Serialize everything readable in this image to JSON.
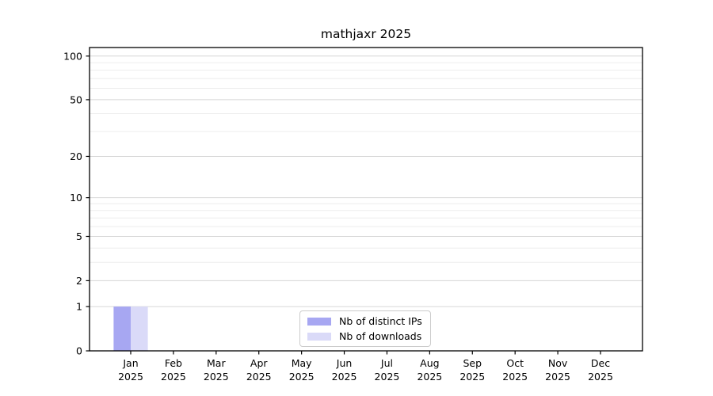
{
  "chart_data": {
    "type": "bar",
    "title": "mathjaxr 2025",
    "scale": "log1p",
    "categories": [
      "Jan",
      "Feb",
      "Mar",
      "Apr",
      "May",
      "Jun",
      "Jul",
      "Aug",
      "Sep",
      "Oct",
      "Nov",
      "Dec"
    ],
    "x_tick_second_line": "2025",
    "series": [
      {
        "name": "Nb of distinct IPs",
        "color": "#a7a7f2",
        "values": [
          1,
          0,
          0,
          0,
          0,
          0,
          0,
          0,
          0,
          0,
          0,
          0
        ]
      },
      {
        "name": "Nb of downloads",
        "color": "#dadaf8",
        "values": [
          1,
          0,
          0,
          0,
          0,
          0,
          0,
          0,
          0,
          0,
          0,
          0
        ]
      }
    ],
    "y_ticks": [
      0,
      1,
      2,
      5,
      10,
      20,
      50,
      100
    ],
    "y_minor_gridlines": [
      3,
      4,
      6,
      7,
      8,
      9,
      30,
      40,
      60,
      70,
      80,
      90
    ],
    "ylim": [
      0,
      113
    ],
    "grid": "horizontal",
    "legend_position": "lower center",
    "colors": {
      "bar_distinct_ips": "#a7a7f2",
      "bar_downloads": "#dadaf8",
      "major_grid": "#d6d6d6",
      "minor_grid": "#ededed",
      "axis": "#000000",
      "text": "#000000",
      "legend_border": "#cccccc",
      "background": "#ffffff"
    }
  }
}
